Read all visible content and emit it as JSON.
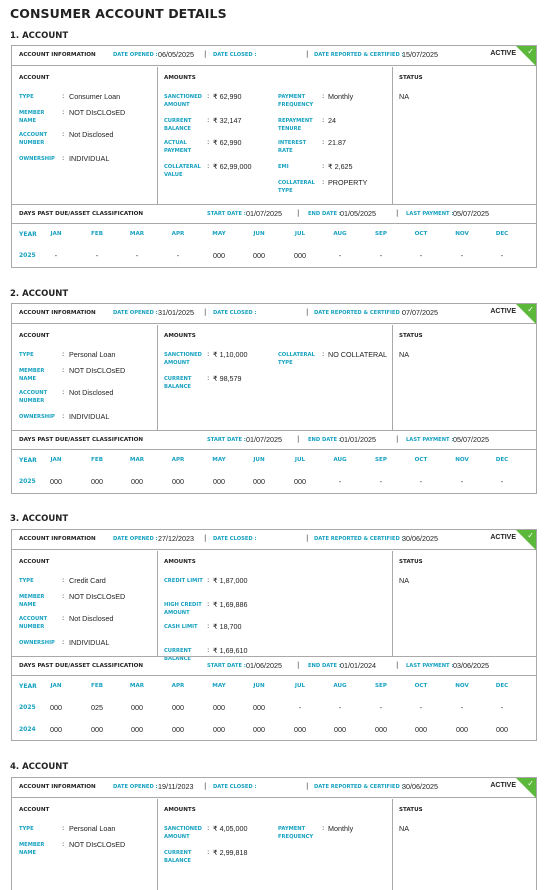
{
  "page_title": "CONSUMER ACCOUNT DETAILS",
  "labels": {
    "account_information": "ACCOUNT INFORMATION",
    "date_opened": "DATE OPENED :",
    "date_closed": "DATE CLOSED :",
    "date_reported": "DATE REPORTED & CERTIFIED :",
    "account": "ACCOUNT",
    "amounts": "AMOUNTS",
    "status": "STATUS",
    "dpd_title": "DAYS PAST DUE/ASSET CLASSIFICATION",
    "start_date": "START DATE :",
    "end_date": "END DATE :",
    "last_payment": "LAST PAYMENT :",
    "year": "YEAR",
    "months": [
      "JAN",
      "FEB",
      "MAR",
      "APR",
      "MAY",
      "JUN",
      "JUL",
      "AUG",
      "SEP",
      "OCT",
      "NOV",
      "DEC"
    ],
    "active": "ACTIVE",
    "separator": "|",
    "colon": ":"
  },
  "accounts": [
    {
      "heading": "1. ACCOUNT",
      "date_opened": "06/05/2025",
      "date_closed": "",
      "date_reported": "15/07/2025",
      "account_fields": [
        {
          "label": "TYPE",
          "value": "Consumer Loan"
        },
        {
          "label": "MEMBER NAME",
          "value": "NOT DIsCLOsED"
        },
        {
          "label": "ACCOUNT NUMBER",
          "value": "Not Disclosed"
        },
        {
          "label": "OWNERSHIP",
          "value": "INDIVIDUAL"
        }
      ],
      "amounts_left": [
        {
          "label": "SANCTIONED AMOUNT",
          "value": "₹ 62,990"
        },
        {
          "label": "CURRENT BALANCE",
          "value": "₹ 32,147"
        },
        {
          "label": "ACTUAL PAYMENT",
          "value": "₹ 62,990"
        },
        {
          "label": "COLLATERAL VALUE",
          "value": "₹ 62,99,000"
        }
      ],
      "amounts_right": [
        {
          "label": "PAYMENT FREQUENCY",
          "value": "Monthly"
        },
        {
          "label": "REPAYMENT TENURE",
          "value": "24"
        },
        {
          "label": "INTEREST RATE",
          "value": "21.87"
        },
        {
          "label": "EMI",
          "value": "₹ 2,625"
        },
        {
          "label": "COLLATERAL TYPE",
          "value": "PROPERTY"
        }
      ],
      "status": "NA",
      "start_date": "01/07/2025",
      "end_date": "01/05/2025",
      "last_payment": "05/07/2025",
      "dpd_rows": [
        {
          "year": "2025",
          "values": [
            "-",
            "-",
            "-",
            "-",
            "000",
            "000",
            "000",
            "-",
            "-",
            "-",
            "-",
            "-"
          ]
        }
      ]
    },
    {
      "heading": "2. ACCOUNT",
      "date_opened": "31/01/2025",
      "date_closed": "",
      "date_reported": "07/07/2025",
      "account_fields": [
        {
          "label": "TYPE",
          "value": "Personal Loan"
        },
        {
          "label": "MEMBER NAME",
          "value": "NOT DIsCLOsED"
        },
        {
          "label": "ACCOUNT NUMBER",
          "value": "Not Disclosed"
        },
        {
          "label": "OWNERSHIP",
          "value": "INDIVIDUAL"
        }
      ],
      "amounts_left": [
        {
          "label": "SANCTIONED AMOUNT",
          "value": "₹ 1,10,000"
        },
        {
          "label": "CURRENT BALANCE",
          "value": "₹ 98,579"
        }
      ],
      "amounts_right": [
        {
          "label": "COLLATERAL TYPE",
          "value": "NO COLLATERAL"
        }
      ],
      "status": "NA",
      "start_date": "01/07/2025",
      "end_date": "01/01/2025",
      "last_payment": "05/07/2025",
      "dpd_rows": [
        {
          "year": "2025",
          "values": [
            "000",
            "000",
            "000",
            "000",
            "000",
            "000",
            "000",
            "-",
            "-",
            "-",
            "-",
            "-"
          ]
        }
      ]
    },
    {
      "heading": "3. ACCOUNT",
      "date_opened": "27/12/2023",
      "date_closed": "",
      "date_reported": "30/06/2025",
      "account_fields": [
        {
          "label": "TYPE",
          "value": "Credit Card"
        },
        {
          "label": "MEMBER NAME",
          "value": "NOT DIsCLOsED"
        },
        {
          "label": "ACCOUNT NUMBER",
          "value": "Not Disclosed"
        },
        {
          "label": "OWNERSHIP",
          "value": "INDIVIDUAL"
        }
      ],
      "amounts_left": [
        {
          "label": "CREDIT LIMIT",
          "value": "₹ 1,87,000"
        },
        {
          "label": "HIGH CREDIT AMOUNT",
          "value": "₹ 1,69,886"
        },
        {
          "label": "CASH LIMIT",
          "value": "₹ 18,700"
        },
        {
          "label": "CURRENT BALANCE",
          "value": "₹ 1,69,610"
        }
      ],
      "amounts_right": [],
      "status": "NA",
      "start_date": "01/06/2025",
      "end_date": "01/01/2024",
      "last_payment": "03/06/2025",
      "dpd_rows": [
        {
          "year": "2025",
          "values": [
            "000",
            "025",
            "000",
            "000",
            "000",
            "000",
            "-",
            "-",
            "-",
            "-",
            "-",
            "-"
          ]
        },
        {
          "year": "2024",
          "values": [
            "000",
            "000",
            "000",
            "000",
            "000",
            "000",
            "000",
            "000",
            "000",
            "000",
            "000",
            "000"
          ]
        }
      ]
    },
    {
      "heading": "4. ACCOUNT",
      "date_opened": "19/11/2023",
      "date_closed": "",
      "date_reported": "30/06/2025",
      "account_fields": [
        {
          "label": "TYPE",
          "value": "Personal Loan"
        },
        {
          "label": "MEMBER NAME",
          "value": "NOT DIsCLOsED"
        }
      ],
      "amounts_left": [
        {
          "label": "SANCTIONED AMOUNT",
          "value": "₹ 4,05,000"
        },
        {
          "label": "CURRENT BALANCE",
          "value": "₹ 2,99,818"
        }
      ],
      "amounts_right": [
        {
          "label": "PAYMENT FREQUENCY",
          "value": "Monthly"
        }
      ],
      "status": "NA"
    }
  ]
}
